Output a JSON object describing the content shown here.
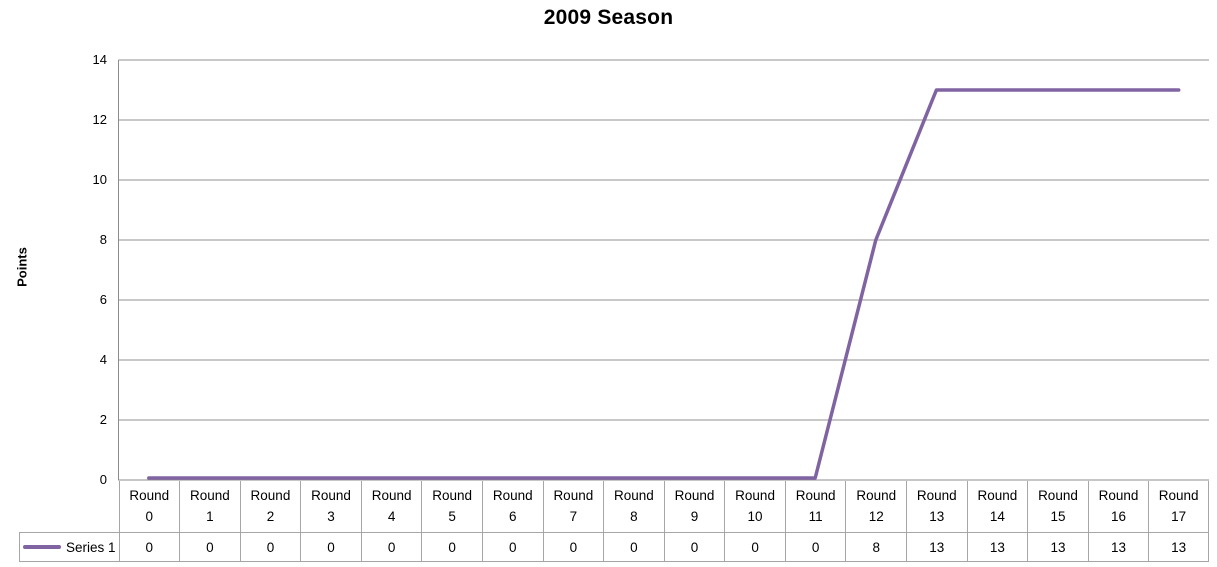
{
  "chart_data": {
    "type": "line",
    "title": "2009 Season",
    "ylabel": "Points",
    "xlabel": "",
    "category_word": "Round",
    "category_numbers": [
      "0",
      "1",
      "2",
      "3",
      "4",
      "5",
      "6",
      "7",
      "8",
      "9",
      "10",
      "11",
      "12",
      "13",
      "14",
      "15",
      "16",
      "17"
    ],
    "categories": [
      "Round 0",
      "Round 1",
      "Round 2",
      "Round 3",
      "Round 4",
      "Round 5",
      "Round 6",
      "Round 7",
      "Round 8",
      "Round 9",
      "Round 10",
      "Round 11",
      "Round 12",
      "Round 13",
      "Round 14",
      "Round 15",
      "Round 16",
      "Round 17"
    ],
    "series": [
      {
        "name": "Series 1",
        "color": "#8064A2",
        "values": [
          0,
          0,
          0,
          0,
          0,
          0,
          0,
          0,
          0,
          0,
          0,
          0,
          8,
          13,
          13,
          13,
          13,
          13
        ]
      }
    ],
    "yticks": [
      0,
      2,
      4,
      6,
      8,
      10,
      12,
      14
    ],
    "ylim": [
      0,
      14
    ],
    "grid": true,
    "legend_position": "bottom-left"
  },
  "colors": {
    "line": "#8064A2",
    "gridline": "#909090",
    "axis": "#8C8C8C",
    "table_border": "#A6A6A6",
    "text": "#000000"
  }
}
